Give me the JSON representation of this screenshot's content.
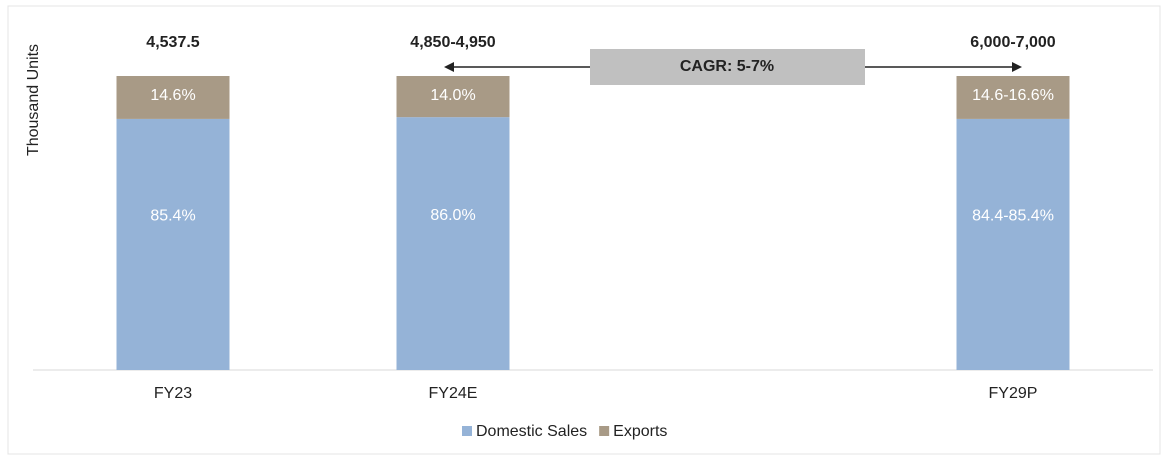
{
  "chart_data": {
    "type": "stacked_bar_100",
    "y_label": "Thousand Units",
    "categories": [
      "FY23",
      "FY24E",
      null,
      "FY29P"
    ],
    "series": [
      {
        "name": "Domestic Sales",
        "color": "#95b3d7",
        "values": [
          85.4,
          86.0,
          null,
          85.4
        ],
        "value_labels": [
          "85.4%",
          "86.0%",
          null,
          "84.4-85.4%"
        ]
      },
      {
        "name": "Exports",
        "color": "#a89a86",
        "values": [
          14.6,
          14.0,
          null,
          14.6
        ],
        "value_labels": [
          "14.6%",
          "14.0%",
          null,
          "14.6-16.6%"
        ]
      }
    ],
    "total_labels": [
      "4,537.5",
      "4,850-4,950",
      null,
      "6,000-7,000"
    ],
    "annotation": "CAGR: 5-7%",
    "ylim": [
      0,
      100
    ],
    "legend": "bottom"
  }
}
